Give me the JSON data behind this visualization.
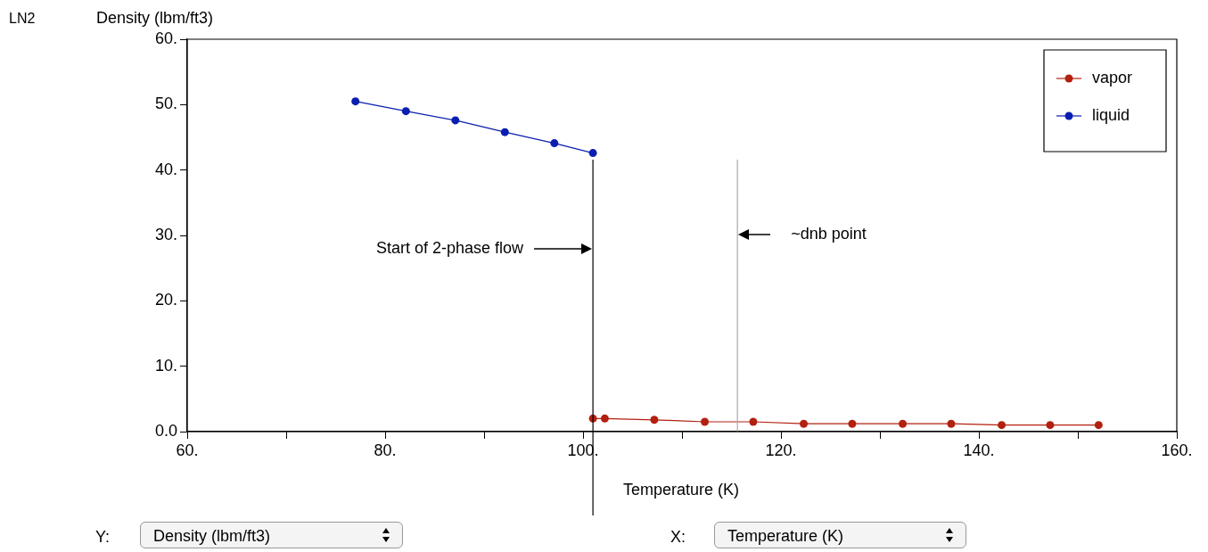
{
  "chart_data": {
    "type": "line",
    "title": "LN2",
    "xlabel": "Temperature (K)",
    "ylabel": "Density (lbm/ft3)",
    "series": [
      {
        "name": "vapor",
        "color": "#b22010",
        "x": [
          101.0,
          102.2,
          107.2,
          112.3,
          117.2,
          122.3,
          127.2,
          132.3,
          137.2,
          142.3,
          147.2,
          152.1
        ],
        "values": [
          2.0,
          2.0,
          1.8,
          1.5,
          1.5,
          1.2,
          1.2,
          1.2,
          1.2,
          1.0,
          1.0,
          1.0
        ]
      },
      {
        "name": "liquid",
        "color": "#0a1fb0",
        "x": [
          77.0,
          82.1,
          87.1,
          92.1,
          97.1,
          101.0
        ],
        "values": [
          50.5,
          49.0,
          47.6,
          45.8,
          44.1,
          42.6
        ]
      }
    ],
    "xlim": [
      60,
      160
    ],
    "xticks": [
      {
        "value": 60,
        "label": "60."
      },
      {
        "value": 70,
        "label": null
      },
      {
        "value": 80,
        "label": "80."
      },
      {
        "value": 90,
        "label": null
      },
      {
        "value": 100,
        "label": "100."
      },
      {
        "value": 110,
        "label": null
      },
      {
        "value": 120,
        "label": "120."
      },
      {
        "value": 130,
        "label": null
      },
      {
        "value": 140,
        "label": "140."
      },
      {
        "value": 150,
        "label": null
      },
      {
        "value": 160,
        "label": "160."
      }
    ],
    "ylim": [
      0,
      60
    ],
    "yticks": [
      {
        "value": 0,
        "label": "0.0"
      },
      {
        "value": 10,
        "label": "10."
      },
      {
        "value": 20,
        "label": "20."
      },
      {
        "value": 30,
        "label": "30."
      },
      {
        "value": 40,
        "label": "40."
      },
      {
        "value": 50,
        "label": "50."
      },
      {
        "value": 60,
        "label": "60."
      }
    ],
    "ref_lines": [
      {
        "axis": "x",
        "value": 101,
        "color": "#000000"
      },
      {
        "axis": "x",
        "value": 115.6,
        "color": "#aaaaaa"
      }
    ],
    "annotations": [
      "Start of 2-phase flow",
      "~dnb point",
      "Y:",
      "X:"
    ],
    "grid": false,
    "legend": "top right",
    "marker": "circle",
    "line_style": "solid"
  }
}
